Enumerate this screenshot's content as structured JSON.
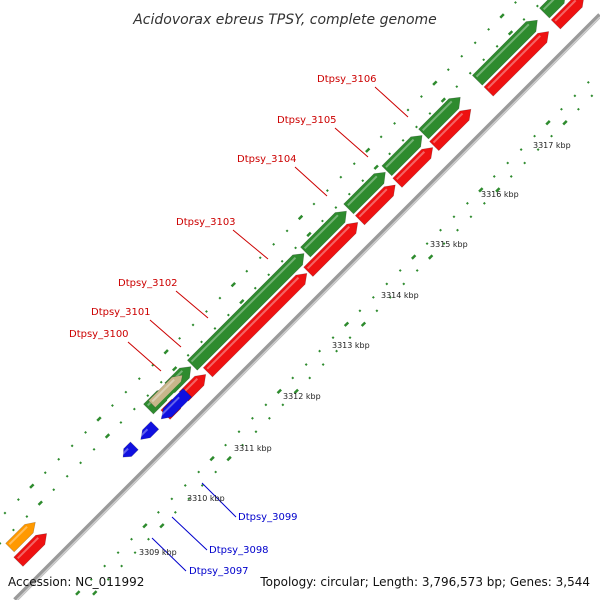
{
  "title": "Acidovorax ebreus TPSY, complete genome",
  "accession_text": "Accession: NC_011992",
  "topology_text": "Topology: circular; Length: 3,796,573 bp; Genes: 3,544",
  "colors": {
    "cds_forward": "#2e8b2e",
    "cds_reverse": "#ee1111",
    "blue": "#1010e0",
    "orange": "#ff9900",
    "tan": "#c8b68a",
    "label_red": "#cc0000",
    "label_blue": "#0000cc",
    "backbone": "#888888",
    "tick": "#2e8b2e"
  },
  "ticks": [
    {
      "label": "3309 kbp"
    },
    {
      "label": "3310 kbp"
    },
    {
      "label": "3311 kbp"
    },
    {
      "label": "3312 kbp"
    },
    {
      "label": "3313 kbp"
    },
    {
      "label": "3314 kbp"
    },
    {
      "label": "3315 kbp"
    },
    {
      "label": "3316 kbp"
    },
    {
      "label": "3317 kbp"
    }
  ],
  "gene_labels_red": [
    {
      "name": "Dtpsy_3100"
    },
    {
      "name": "Dtpsy_3101"
    },
    {
      "name": "Dtpsy_3102"
    },
    {
      "name": "Dtpsy_3103"
    },
    {
      "name": "Dtpsy_3104"
    },
    {
      "name": "Dtpsy_3105"
    },
    {
      "name": "Dtpsy_3106"
    }
  ],
  "gene_labels_blue": [
    {
      "name": "Dtpsy_3097"
    },
    {
      "name": "Dtpsy_3098"
    },
    {
      "name": "Dtpsy_3099"
    }
  ]
}
